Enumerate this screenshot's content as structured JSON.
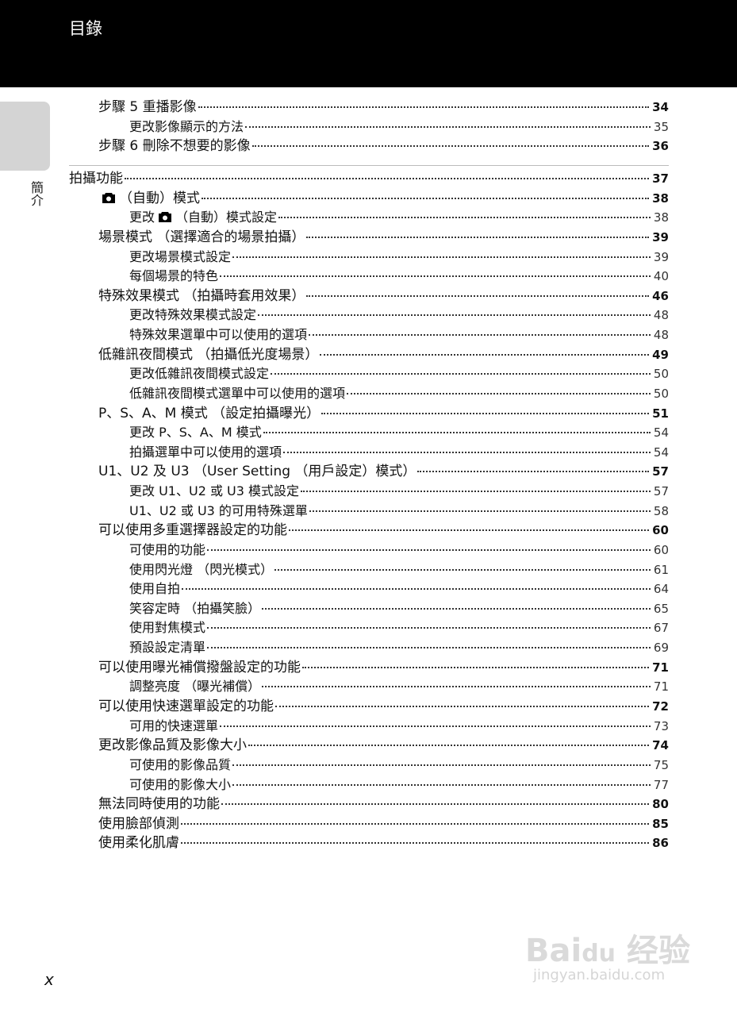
{
  "header": {
    "title": "目錄"
  },
  "side_tab": {
    "label": "簡介"
  },
  "toc": [
    {
      "level": 1,
      "title": "步驟 5 重播影像",
      "page": "34"
    },
    {
      "level": 2,
      "title": "更改影像顯示的方法",
      "page": "35"
    },
    {
      "level": 1,
      "title": "步驟 6 刪除不想要的影像",
      "page": "36"
    },
    {
      "level": 0,
      "title": "拍攝功能",
      "page": "37"
    },
    {
      "level": 1,
      "before": "",
      "icon": "camera-icon",
      "title": "（自動）模式",
      "page": "38"
    },
    {
      "level": 2,
      "before": "更改",
      "icon": "camera-icon",
      "title": "（自動）模式設定",
      "page": "38"
    },
    {
      "level": 1,
      "title": "場景模式 （選擇適合的場景拍攝）",
      "page": "39"
    },
    {
      "level": 2,
      "title": "更改場景模式設定",
      "page": "39"
    },
    {
      "level": 2,
      "title": "每個場景的特色",
      "page": "40"
    },
    {
      "level": 1,
      "title": "特殊效果模式 （拍攝時套用效果）",
      "page": "46"
    },
    {
      "level": 2,
      "title": "更改特殊效果模式設定",
      "page": "48"
    },
    {
      "level": 2,
      "title": "特殊效果選單中可以使用的選項",
      "page": "48"
    },
    {
      "level": 1,
      "title": "低雜訊夜間模式 （拍攝低光度場景）",
      "page": "49"
    },
    {
      "level": 2,
      "title": "更改低雜訊夜間模式設定",
      "page": "50"
    },
    {
      "level": 2,
      "title": "低雜訊夜間模式選單中可以使用的選項",
      "page": "50"
    },
    {
      "level": 1,
      "title": "P、S、A、M 模式 （設定拍攝曝光）",
      "page": "51"
    },
    {
      "level": 2,
      "title": "更改 P、S、A、M 模式",
      "page": "54"
    },
    {
      "level": 2,
      "title": "拍攝選單中可以使用的選項",
      "page": "54"
    },
    {
      "level": 1,
      "title": "U1、U2 及 U3 （User Setting （用戶設定）模式）",
      "page": "57"
    },
    {
      "level": 2,
      "title": "更改 U1、U2 或 U3 模式設定",
      "page": "57"
    },
    {
      "level": 2,
      "title": "U1、U2 或 U3 的可用特殊選單",
      "page": "58"
    },
    {
      "level": 1,
      "title": "可以使用多重選擇器設定的功能",
      "page": "60"
    },
    {
      "level": 2,
      "title": "可使用的功能",
      "page": "60"
    },
    {
      "level": 2,
      "title": "使用閃光燈 （閃光模式）",
      "page": "61"
    },
    {
      "level": 2,
      "title": "使用自拍",
      "page": "64"
    },
    {
      "level": 2,
      "title": "笑容定時 （拍攝笑臉）",
      "page": "65"
    },
    {
      "level": 2,
      "title": "使用對焦模式",
      "page": "67"
    },
    {
      "level": 2,
      "title": "預設設定清單",
      "page": "69"
    },
    {
      "level": 1,
      "title": "可以使用曝光補償撥盤設定的功能",
      "page": "71"
    },
    {
      "level": 2,
      "title": "調整亮度 （曝光補償）",
      "page": "71"
    },
    {
      "level": 1,
      "title": "可以使用快速選單設定的功能",
      "page": "72"
    },
    {
      "level": 2,
      "title": "可用的快速選單",
      "page": "73"
    },
    {
      "level": 1,
      "title": "更改影像品質及影像大小",
      "page": "74"
    },
    {
      "level": 2,
      "title": "可使用的影像品質",
      "page": "75"
    },
    {
      "level": 2,
      "title": "可使用的影像大小",
      "page": "77"
    },
    {
      "level": 1,
      "title": "無法同時使用的功能",
      "page": "80"
    },
    {
      "level": 1,
      "title": "使用臉部偵測",
      "page": "85"
    },
    {
      "level": 1,
      "title": "使用柔化肌膚",
      "page": "86"
    }
  ],
  "folio": "x",
  "watermark": {
    "logo": "Bai du 经验",
    "url": "jingyan.baidu.com"
  }
}
